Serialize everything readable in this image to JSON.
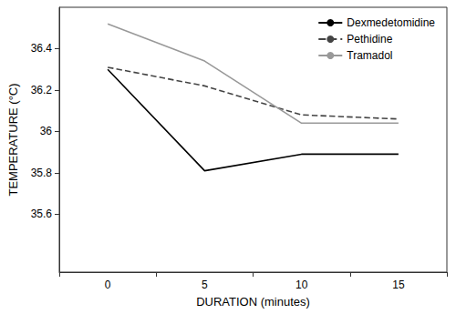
{
  "chart_data": {
    "type": "line",
    "x_label": "DURATION (minutes)",
    "y_label": "TEMPERATURE (°C)",
    "categories": [
      "0",
      "5",
      "10",
      "15"
    ],
    "series": [
      {
        "name": "Dexmedetomidine",
        "color": "#000000",
        "line_style": "solid",
        "values": [
          36.3,
          35.81,
          35.89,
          35.89
        ]
      },
      {
        "name": "Pethidine",
        "color": "#444444",
        "line_style": "dashed",
        "values": [
          36.31,
          36.22,
          36.08,
          36.06
        ]
      },
      {
        "name": "Tramadol",
        "color": "#999999",
        "line_style": "solid",
        "values": [
          36.52,
          36.34,
          36.04,
          36.04
        ]
      }
    ],
    "ylim": [
      35.32,
      36.6
    ],
    "yticks": [
      35.6,
      35.8,
      36.0,
      36.2,
      36.4
    ],
    "grid": false,
    "legend": "upper right"
  }
}
